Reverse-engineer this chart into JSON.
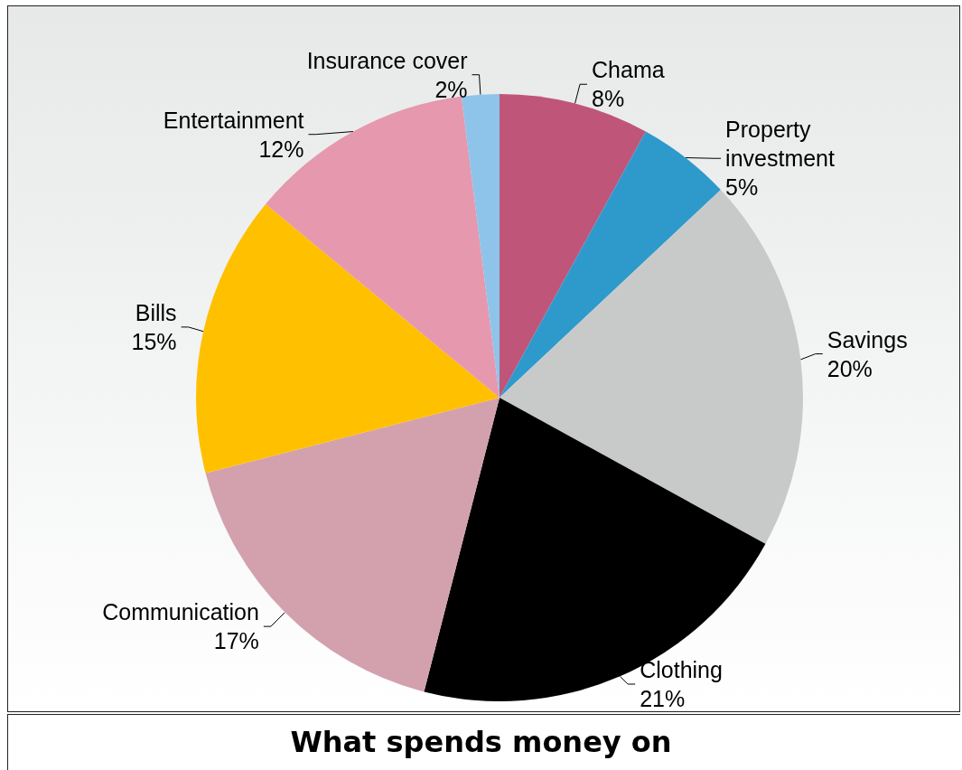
{
  "chart_data": {
    "type": "pie",
    "title": "What spends money on",
    "categories": [
      "Chama",
      "Property investment",
      "Savings",
      "Clothing",
      "Communication",
      "Bills",
      "Entertainment",
      "Insurance cover"
    ],
    "values": [
      8,
      5,
      20,
      21,
      17,
      15,
      12,
      2
    ],
    "colors": [
      "#c0557a",
      "#2e9acb",
      "#c8cac9",
      "#000000",
      "#d3a1ae",
      "#ffc000",
      "#e698ae",
      "#8ec4ea"
    ],
    "legend": false,
    "value_labels": [
      "8%",
      "5%",
      "20%",
      "21%",
      "17%",
      "15%",
      "12%",
      "2%"
    ]
  }
}
